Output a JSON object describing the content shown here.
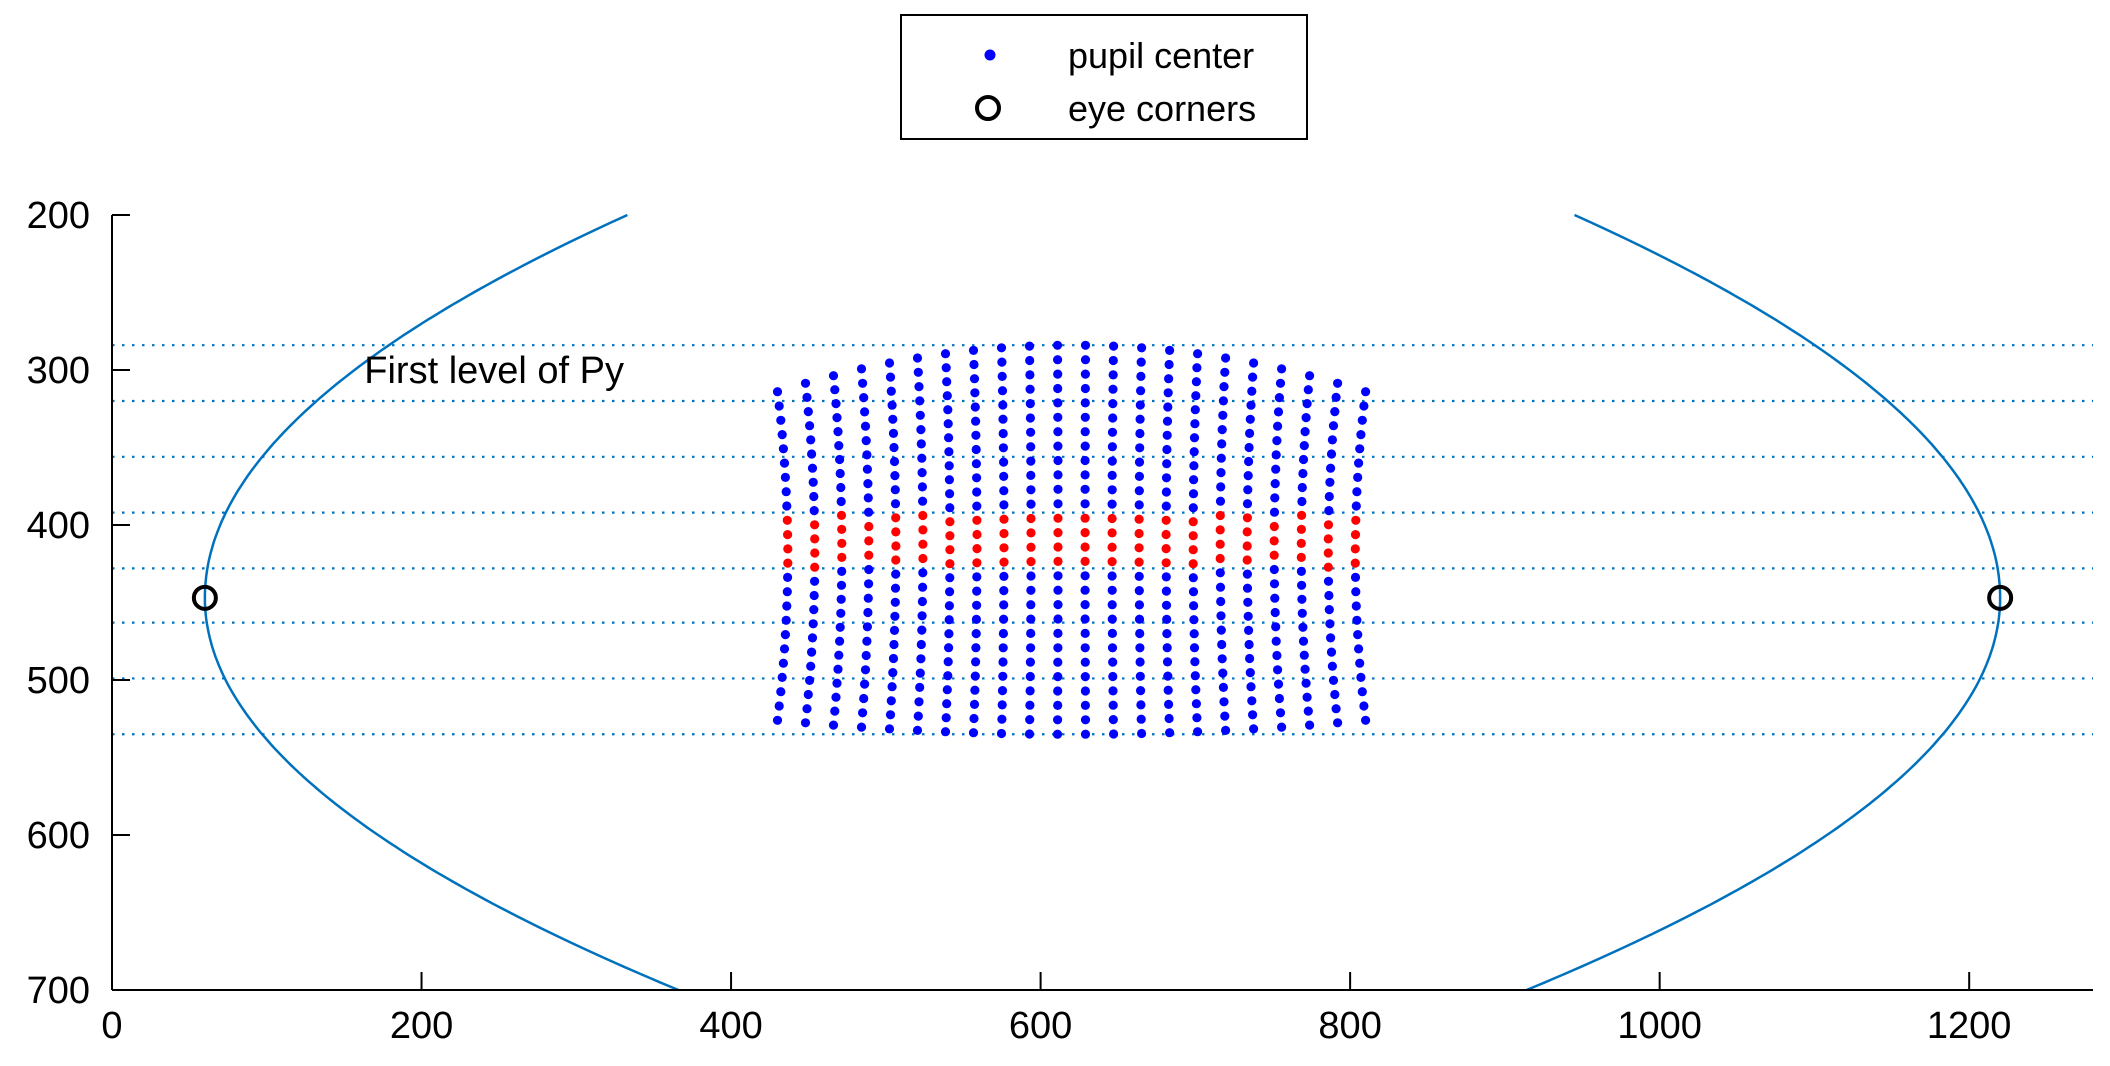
{
  "chart_data": {
    "type": "scatter",
    "title": "",
    "xlabel": "",
    "ylabel": "",
    "xlim": [
      0,
      1280
    ],
    "ylim": [
      200,
      700
    ],
    "y_reversed": true,
    "grid": false,
    "legend_placement": "top-center-outside",
    "x_ticks": [
      0,
      200,
      400,
      600,
      800,
      1000,
      1200
    ],
    "y_ticks": [
      200,
      300,
      400,
      500,
      600,
      700
    ],
    "legend": [
      {
        "label": "pupil center",
        "marker": "dot",
        "color": "#0000ff"
      },
      {
        "label": "eye corners",
        "marker": "circle",
        "color": "#000000"
      }
    ],
    "annotations": [
      {
        "text": "First level of Py",
        "x": 163,
        "y": 300
      }
    ],
    "eye_corners": [
      {
        "x": 60,
        "y": 447
      },
      {
        "x": 1220,
        "y": 447
      }
    ],
    "eyelid_curve": {
      "color": "#0072bd",
      "left": {
        "vertex": [
          60,
          447
        ],
        "top_end": [
          333,
          200
        ],
        "bottom_end": [
          366,
          700
        ]
      },
      "right": {
        "vertex": [
          1220,
          447
        ],
        "top_end": [
          945,
          200
        ],
        "bottom_end": [
          914,
          700
        ]
      }
    },
    "horizontal_levels": {
      "color": "#0072bd",
      "style": "dotted",
      "y": [
        284,
        320,
        356,
        392,
        428,
        463,
        499,
        535
      ]
    },
    "pupil_grid": {
      "columns": 22,
      "x_start": 430,
      "x_end": 810,
      "y_top_center": 284,
      "y_top_edge": 314,
      "y_bottom_center": 535,
      "y_bottom_edge": 526,
      "row_spacing": 9.2,
      "color": "#0000ff",
      "highlight_color": "#ff0000",
      "highlight_band": [
        392,
        428
      ]
    }
  }
}
